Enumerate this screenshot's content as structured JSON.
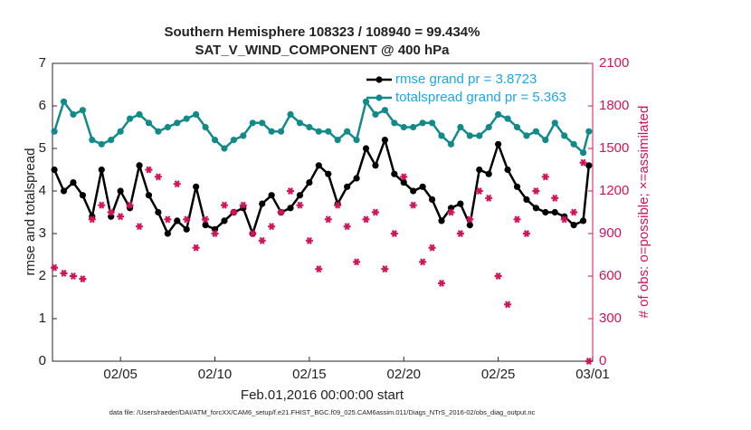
{
  "chart_data": {
    "type": "line",
    "title": "Southern Hemisphere 108323 / 108940 = 99.434%",
    "subtitle": "SAT_V_WIND_COMPONENT @ 400 hPa",
    "xlabel": "Feb.01,2016 00:00:00 start",
    "ylabel": "rmse and totalspread",
    "y2label": "# of obs: o=possible; ×=assimilated",
    "footnote": "data file: /Users/raeder/DAI/ATM_forcXX/CAM6_setup/f.e21.FHIST_BGC.f09_025.CAM6assim.011/Diags_NTrS_2016-02/obs_diag_output.nc",
    "x": [
      1.5,
      2,
      2.5,
      3,
      3.5,
      4,
      4.5,
      5,
      5.5,
      6,
      6.5,
      7,
      7.5,
      8,
      8.5,
      9,
      9.5,
      10,
      10.5,
      11,
      11.5,
      12,
      12.5,
      13,
      13.5,
      14,
      14.5,
      15,
      15.5,
      16,
      16.5,
      17,
      17.5,
      18,
      18.5,
      19,
      19.5,
      20,
      20.5,
      21,
      21.5,
      22,
      22.5,
      23,
      23.5,
      24,
      24.5,
      25,
      25.5,
      26,
      26.5,
      27,
      27.5,
      28,
      28.5,
      29,
      29.5,
      29.8
    ],
    "series": [
      {
        "name": "rmse grand pr = 3.8723",
        "color": "#000000",
        "marker": "circle",
        "values": [
          4.5,
          4.0,
          4.2,
          3.9,
          3.4,
          4.5,
          3.4,
          4.0,
          3.6,
          4.6,
          3.9,
          3.5,
          3.0,
          3.3,
          3.1,
          4.1,
          3.2,
          3.1,
          3.3,
          3.5,
          3.6,
          3.0,
          3.7,
          3.9,
          3.5,
          3.6,
          3.9,
          4.2,
          4.6,
          4.4,
          3.7,
          4.1,
          4.3,
          5.0,
          4.6,
          5.2,
          4.4,
          4.2,
          4.0,
          4.1,
          3.8,
          3.3,
          3.6,
          3.7,
          3.2,
          4.5,
          4.4,
          5.1,
          4.5,
          4.1,
          3.8,
          3.6,
          3.5,
          3.5,
          3.4,
          3.2,
          3.3,
          4.6
        ]
      },
      {
        "name": "totalspread grand pr = 5.363",
        "color": "#138a8a",
        "marker": "circle",
        "values": [
          5.4,
          6.1,
          5.8,
          5.9,
          5.2,
          5.1,
          5.2,
          5.4,
          5.7,
          5.8,
          5.6,
          5.4,
          5.5,
          5.6,
          5.7,
          5.8,
          5.5,
          5.2,
          5.0,
          5.2,
          5.3,
          5.6,
          5.6,
          5.4,
          5.4,
          5.8,
          5.6,
          5.5,
          5.4,
          5.4,
          5.2,
          5.4,
          5.2,
          6.1,
          5.8,
          5.9,
          5.6,
          5.5,
          5.5,
          5.6,
          5.6,
          5.3,
          5.1,
          5.5,
          5.3,
          5.3,
          5.5,
          5.8,
          5.7,
          5.5,
          5.3,
          5.4,
          5.2,
          5.6,
          5.3,
          5.1,
          4.9,
          5.4
        ]
      },
      {
        "color": "#d1145a",
        "marker": "star",
        "axis": "y2",
        "values": [
          660,
          620,
          600,
          580,
          1000,
          1100,
          1050,
          1020,
          1100,
          950,
          1350,
          1300,
          1000,
          1250,
          1000,
          800,
          1000,
          900,
          1100,
          1050,
          1100,
          900,
          850,
          950,
          1050,
          1200,
          1100,
          850,
          650,
          1000,
          1100,
          950,
          700,
          1000,
          1050,
          650,
          900,
          1300,
          1100,
          700,
          800,
          550,
          1050,
          900,
          1000,
          1200,
          1150,
          600,
          400,
          1000,
          900,
          1200,
          1300,
          1150,
          1000,
          1050,
          1400,
          0
        ]
      }
    ],
    "legend_text_color": "#1fa6e0",
    "legend": "upper right",
    "xlim": [
      1.4,
      30
    ],
    "xticks": [
      {
        "value": 5,
        "label": "02/05"
      },
      {
        "value": 10,
        "label": "02/10"
      },
      {
        "value": 15,
        "label": "02/15"
      },
      {
        "value": 20,
        "label": "02/20"
      },
      {
        "value": 25,
        "label": "02/25"
      },
      {
        "value": 30,
        "label": "03/01"
      }
    ],
    "ylim": [
      0,
      7
    ],
    "yticks": [
      0,
      1,
      2,
      3,
      4,
      5,
      6,
      7
    ],
    "y2lim": [
      0,
      2100
    ],
    "y2ticks": [
      0,
      300,
      600,
      900,
      1200,
      1500,
      1800,
      2100
    ]
  }
}
